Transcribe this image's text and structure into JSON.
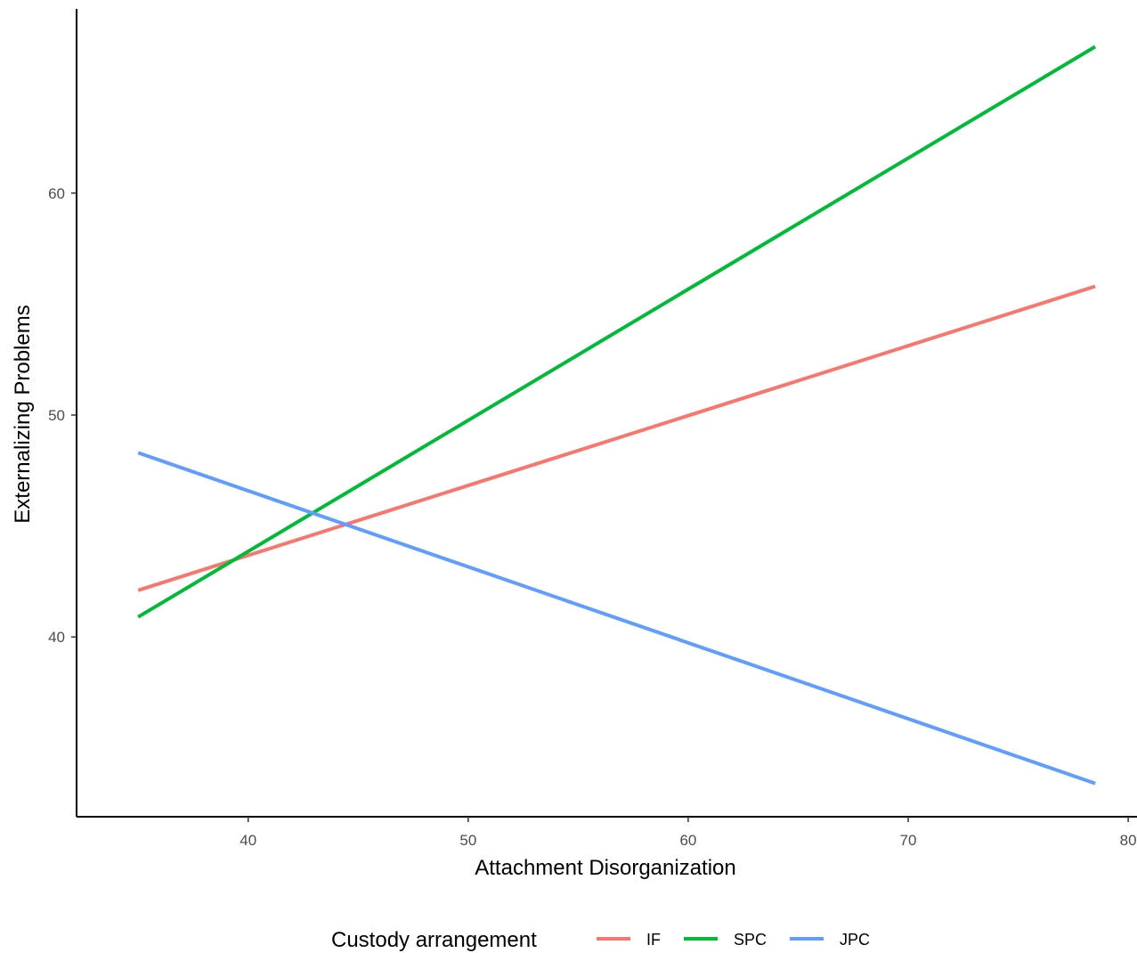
{
  "chart_data": {
    "type": "line",
    "xlabel": "Attachment Disorganization",
    "ylabel": "Externalizing Problems",
    "xlim": [
      32.2,
      80.4
    ],
    "ylim": [
      31.9,
      68.3
    ],
    "xticks": [
      40,
      50,
      60,
      70,
      80
    ],
    "yticks": [
      40,
      50,
      60
    ],
    "grid": false,
    "legend": {
      "title": "Custody arrangement",
      "position": "bottom"
    },
    "series": [
      {
        "name": "IF",
        "color": "#F8766D",
        "x": [
          35,
          78.5
        ],
        "y": [
          42.1,
          55.8
        ]
      },
      {
        "name": "SPC",
        "color": "#00BA38",
        "x": [
          35,
          78.5
        ],
        "y": [
          40.9,
          66.6
        ]
      },
      {
        "name": "JPC",
        "color": "#619CFF",
        "x": [
          35,
          78.5
        ],
        "y": [
          48.3,
          33.4
        ]
      }
    ]
  }
}
